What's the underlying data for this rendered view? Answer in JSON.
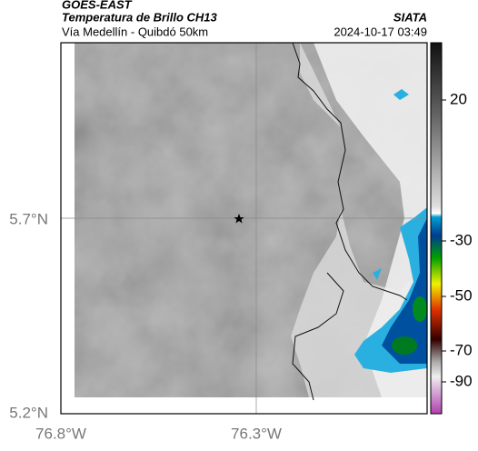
{
  "header": {
    "title": "GOES-EAST",
    "subtitle": "Temperatura de Brillo CH13",
    "route": "Vía Medellín - Quibdó 50km",
    "source": "SIATA",
    "datetime": "2024-10-17 03:49"
  },
  "map": {
    "lat_labels": [
      "5.7°N",
      "5.2°N"
    ],
    "lon_labels": [
      "76.8°W",
      "76.3°W"
    ]
  },
  "colorbar": {
    "ticks": [
      20,
      -30,
      -50,
      -70,
      -90
    ]
  }
}
